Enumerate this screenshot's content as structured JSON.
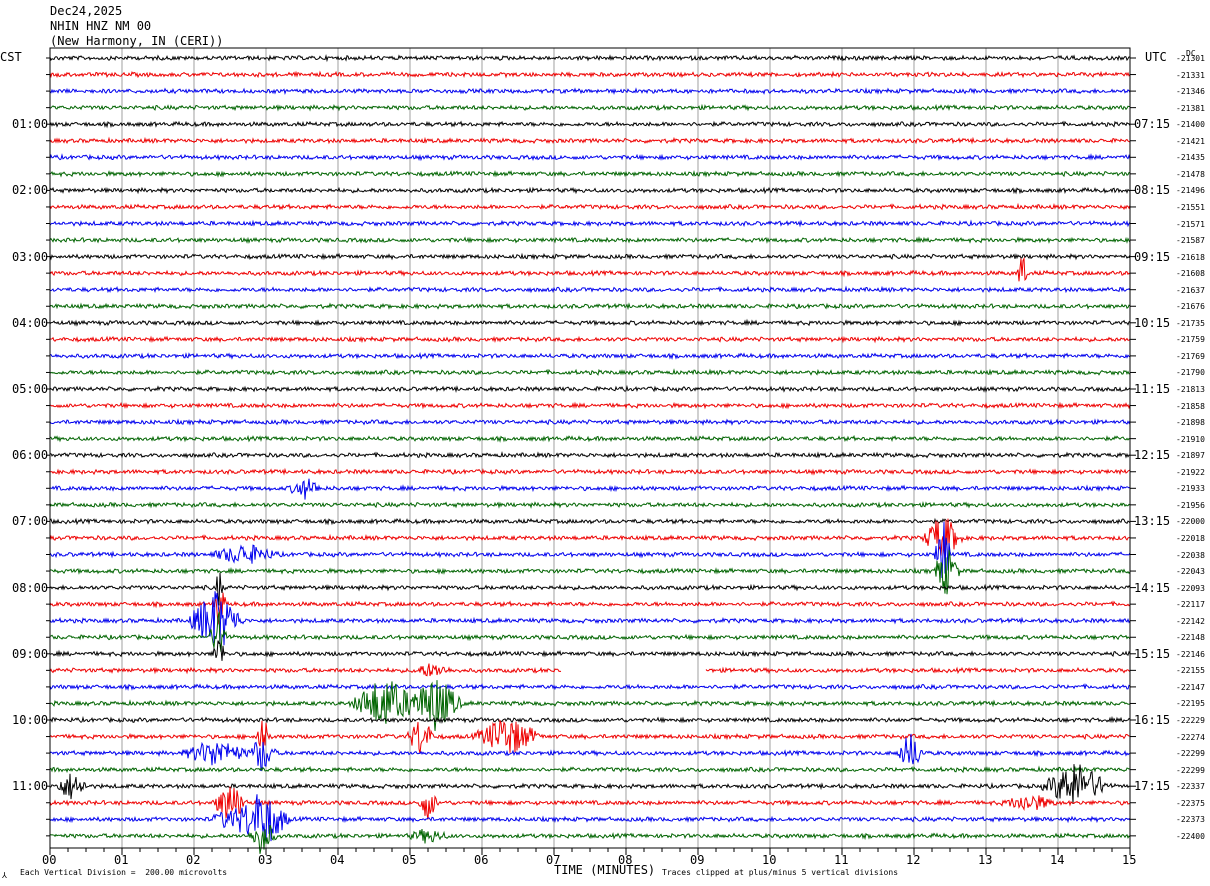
{
  "header": {
    "date": "Dec24,2025",
    "station": "NHIN HNZ NM 00",
    "location": "(New Harmony, IN (CERI))"
  },
  "axis": {
    "left_tz": "CST",
    "right_tz": "UTC",
    "dc_label": "DC",
    "xlabel": "TIME (MINUTES)",
    "scale_note": "Each Vertical Division =  200.00 microvolts",
    "clip_note": "Traces clipped at plus/minus 5 vertical divisions",
    "corner_mark": "⅄"
  },
  "chart_data": {
    "type": "line",
    "title": "",
    "xlabel": "TIME (MINUTES)",
    "x_ticks": [
      "00",
      "01",
      "02",
      "03",
      "04",
      "05",
      "06",
      "07",
      "08",
      "09",
      "10",
      "11",
      "12",
      "13",
      "14",
      "15"
    ],
    "xlim": [
      0,
      15
    ],
    "grid": true,
    "trace_colors": [
      "#000000",
      "#ee0000",
      "#0000ee",
      "#006400"
    ],
    "left_hour_labels": [
      "01:00",
      "02:00",
      "03:00",
      "04:00",
      "05:00",
      "06:00",
      "07:00",
      "08:00",
      "09:00",
      "10:00",
      "11:00"
    ],
    "right_hour_labels": [
      "07:15",
      "08:15",
      "09:15",
      "10:15",
      "11:15",
      "12:15",
      "13:15",
      "14:15",
      "15:15",
      "16:15",
      "17:15"
    ],
    "dc_offsets": [
      "-21301",
      "-21331",
      "-21346",
      "-21381",
      "-21400",
      "-21421",
      "-21435",
      "-21478",
      "-21496",
      "-21551",
      "-21571",
      "-21587",
      "-21618",
      "-21608",
      "-21637",
      "-21676",
      "-21735",
      "-21759",
      "-21769",
      "-21790",
      "-21813",
      "-21858",
      "-21898",
      "-21910",
      "-21897",
      "-21922",
      "-21933",
      "-21956",
      "-22000",
      "-22018",
      "-22038",
      "-22043",
      "-22093",
      "-22117",
      "-22142",
      "-22148",
      "-22146",
      "-22155",
      "-22147",
      "-22195",
      "-22229",
      "-22274",
      "-22299",
      "-22299",
      "-22337",
      "-22375",
      "-22373",
      "-22400"
    ],
    "events": [
      {
        "trace": 13,
        "minute": 13.5,
        "amplitude": 1.3,
        "duration": 0.08
      },
      {
        "trace": 26,
        "minute": 3.55,
        "amplitude": 0.6,
        "duration": 0.25
      },
      {
        "trace": 29,
        "minute": 12.4,
        "amplitude": 1.4,
        "duration": 0.3
      },
      {
        "trace": 30,
        "minute": 2.7,
        "amplitude": 0.6,
        "duration": 0.5
      },
      {
        "trace": 30,
        "minute": 12.4,
        "amplitude": 2.2,
        "duration": 0.12
      },
      {
        "trace": 31,
        "minute": 12.45,
        "amplitude": 1.5,
        "duration": 0.2
      },
      {
        "trace": 32,
        "minute": 2.35,
        "amplitude": 1.2,
        "duration": 0.06
      },
      {
        "trace": 33,
        "minute": 2.35,
        "amplitude": 1.5,
        "duration": 0.1
      },
      {
        "trace": 34,
        "minute": 2.3,
        "amplitude": 2.0,
        "duration": 0.4
      },
      {
        "trace": 35,
        "minute": 2.35,
        "amplitude": 1.5,
        "duration": 0.15
      },
      {
        "trace": 36,
        "minute": 2.35,
        "amplitude": 1.2,
        "duration": 0.1
      },
      {
        "trace": 37,
        "minute": 5.3,
        "amplitude": 0.4,
        "duration": 0.3
      },
      {
        "trace": 39,
        "minute": 4.65,
        "amplitude": 1.6,
        "duration": 0.5
      },
      {
        "trace": 39,
        "minute": 5.35,
        "amplitude": 1.7,
        "duration": 0.4
      },
      {
        "trace": 41,
        "minute": 5.15,
        "amplitude": 1.2,
        "duration": 0.2
      },
      {
        "trace": 41,
        "minute": 6.35,
        "amplitude": 1.2,
        "duration": 0.5
      },
      {
        "trace": 41,
        "minute": 2.95,
        "amplitude": 1.5,
        "duration": 0.1
      },
      {
        "trace": 42,
        "minute": 2.3,
        "amplitude": 0.8,
        "duration": 0.5
      },
      {
        "trace": 42,
        "minute": 2.95,
        "amplitude": 1.2,
        "duration": 0.2
      },
      {
        "trace": 42,
        "minute": 11.95,
        "amplitude": 1.2,
        "duration": 0.2
      },
      {
        "trace": 44,
        "minute": 0.3,
        "amplitude": 0.8,
        "duration": 0.25
      },
      {
        "trace": 44,
        "minute": 14.25,
        "amplitude": 1.4,
        "duration": 0.5
      },
      {
        "trace": 45,
        "minute": 2.5,
        "amplitude": 1.3,
        "duration": 0.25
      },
      {
        "trace": 45,
        "minute": 5.25,
        "amplitude": 1.0,
        "duration": 0.15
      },
      {
        "trace": 45,
        "minute": 13.6,
        "amplitude": 0.5,
        "duration": 0.4
      },
      {
        "trace": 46,
        "minute": 2.95,
        "amplitude": 1.8,
        "duration": 0.4
      },
      {
        "trace": 46,
        "minute": 2.5,
        "amplitude": 0.6,
        "duration": 0.3
      },
      {
        "trace": 47,
        "minute": 2.95,
        "amplitude": 1.2,
        "duration": 0.2
      },
      {
        "trace": 47,
        "minute": 5.25,
        "amplitude": 0.4,
        "duration": 0.3
      }
    ],
    "gaps": [
      {
        "trace": 37,
        "start_minute": 7.1,
        "end_minute": 9.1
      }
    ]
  }
}
